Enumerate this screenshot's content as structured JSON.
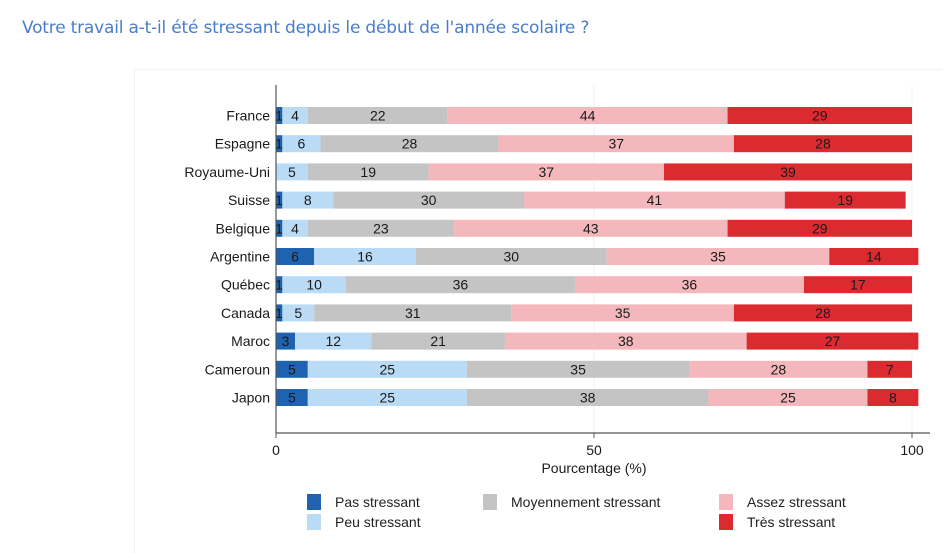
{
  "header": {
    "title": "Votre travail a-t-il été stressant depuis le début de l'année scolaire ?"
  },
  "chart_data": {
    "type": "bar",
    "orientation": "horizontal",
    "stacked": true,
    "title": "Votre travail a-t-il été stressant depuis le début de l'année scolaire ?",
    "xlabel": "Pourcentage (%)",
    "ylabel": "",
    "xlim": [
      0,
      100
    ],
    "xticks": [
      "0",
      "50",
      "100"
    ],
    "grid": "vertical",
    "legend_position": "bottom",
    "categories": [
      "France",
      "Espagne",
      "Royaume-Uni",
      "Suisse",
      "Belgique",
      "Argentine",
      "Québec",
      "Canada",
      "Maroc",
      "Cameroun",
      "Japon"
    ],
    "series": [
      {
        "name": "Pas stressant",
        "color": "#1f63b0",
        "values": [
          1,
          1,
          0,
          1,
          1,
          6,
          1,
          1,
          3,
          5,
          5
        ]
      },
      {
        "name": "Peu stressant",
        "color": "#b9dbf6",
        "values": [
          4,
          6,
          5,
          8,
          4,
          16,
          10,
          5,
          12,
          25,
          25
        ]
      },
      {
        "name": "Moyennement stressant",
        "color": "#c4c4c4",
        "values": [
          22,
          28,
          19,
          30,
          23,
          30,
          36,
          31,
          21,
          35,
          38
        ]
      },
      {
        "name": "Assez stressant",
        "color": "#f4b8bc",
        "values": [
          44,
          37,
          37,
          41,
          43,
          35,
          36,
          35,
          38,
          28,
          25
        ]
      },
      {
        "name": "Très stressant",
        "color": "#dc2a31",
        "values": [
          29,
          28,
          39,
          19,
          29,
          14,
          17,
          28,
          27,
          7,
          8
        ]
      }
    ]
  },
  "legend": [
    {
      "label": "Pas stressant",
      "color": "#1f63b0"
    },
    {
      "label": "Peu stressant",
      "color": "#b9dbf6"
    },
    {
      "label": "Moyennement stressant",
      "color": "#c4c4c4"
    },
    {
      "label": "Assez stressant",
      "color": "#f4b8bc"
    },
    {
      "label": "Très stressant",
      "color": "#dc2a31"
    }
  ]
}
